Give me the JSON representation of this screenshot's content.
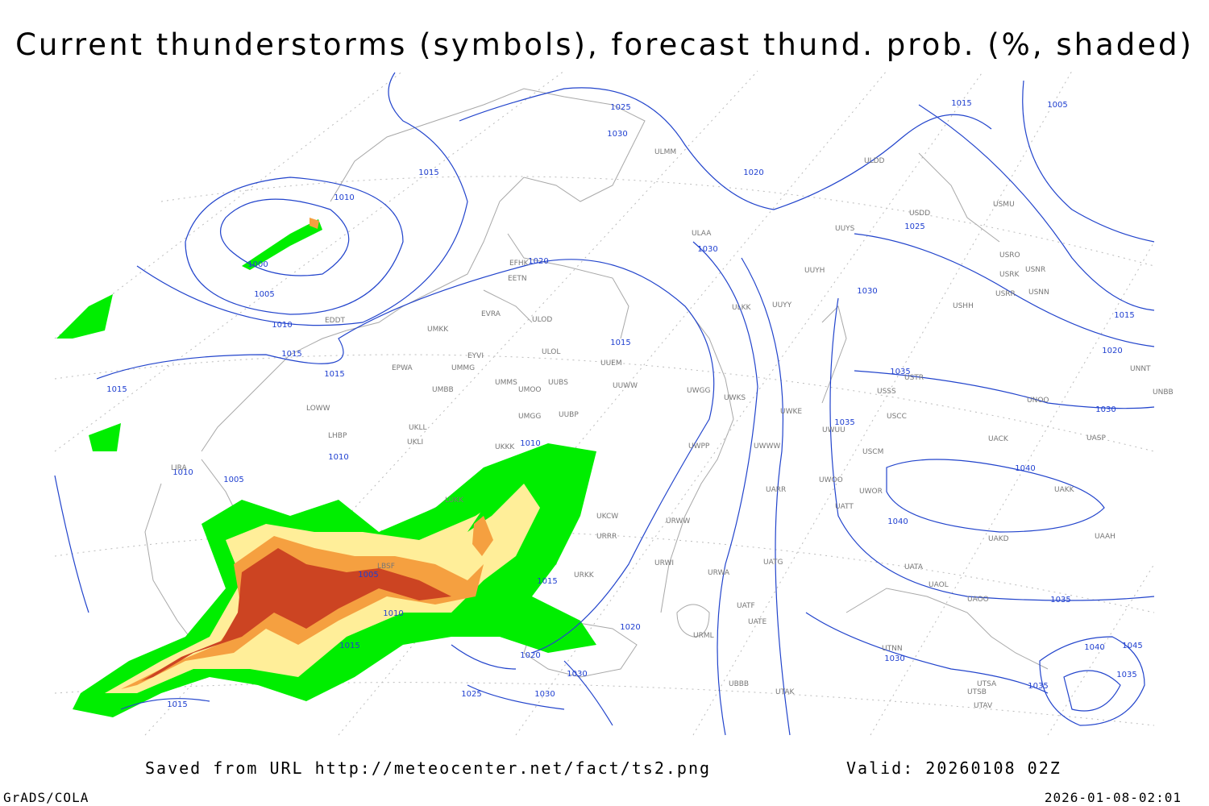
{
  "header": {
    "title": "Current thunderstorms (symbols), forecast thund. prob. (%, shaded)"
  },
  "footer": {
    "source": "Saved from URL  http://meteocenter.net/fact/ts2.png",
    "valid": "Valid: 20260108 02Z",
    "software": "GrADS/COLA",
    "timestamp": "2026-01-08-02:01"
  },
  "isobar_labels": [
    1025,
    1030,
    1015,
    1010,
    1000,
    1005,
    1010,
    1015,
    1015,
    1015,
    1020,
    1015,
    1030,
    1020,
    1015,
    1005,
    1025,
    1030,
    1035,
    1035,
    1040,
    1040,
    1035,
    1030,
    1015,
    1020,
    1030,
    1010,
    1010,
    1010,
    1005,
    1005,
    1015,
    1010,
    1020,
    1015,
    1020,
    1030,
    1025,
    1030,
    1015,
    1040,
    1045,
    1035,
    1035
  ],
  "stations": [
    "EDDT",
    "EFHK",
    "EETN",
    "EVRA",
    "ULOD",
    "UMKK",
    "EYVI",
    "ULOL",
    "EPWA",
    "UMMG",
    "UUEM",
    "UMMS",
    "UMOO",
    "UUBS",
    "UUWW",
    "UMBB",
    "LOWW",
    "UKLL",
    "UMGG",
    "UUBP",
    "LHBP",
    "UKLI",
    "UKKK",
    "UWGG",
    "UWKS",
    "UWKE",
    "ULAA",
    "ULKK",
    "UUYY",
    "UUYH",
    "UUYS",
    "ULDD",
    "ULMM",
    "USDD",
    "USMU",
    "USRO",
    "USRK",
    "USNR",
    "USRR",
    "USNN",
    "USHH",
    "USSS",
    "USTR",
    "USCC",
    "UNOO",
    "UNNT",
    "UNBB",
    "UACK",
    "UASP",
    "UAKK",
    "UAAH",
    "UATA",
    "UAOL",
    "UAOO",
    "UAKD",
    "UATT",
    "UWOO",
    "UWOR",
    "USCM",
    "UWUU",
    "UWWW",
    "UWPP",
    "UARR",
    "URWW",
    "URWA",
    "UATG",
    "UATE",
    "UATF",
    "URML",
    "UBBB",
    "UTAK",
    "UTNN",
    "UTSA",
    "UTSB",
    "UTAV",
    "LBSF",
    "URKK",
    "UKCW",
    "URRR",
    "URWI",
    "LIRA",
    "LUKK"
  ]
}
